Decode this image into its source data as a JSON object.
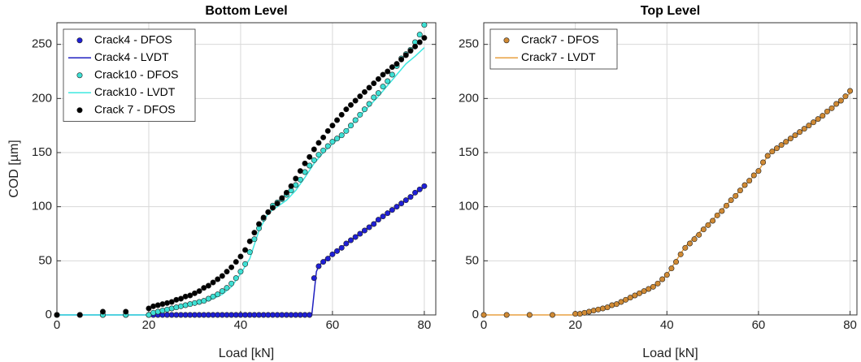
{
  "chart_data": [
    {
      "type": "line",
      "title": "Bottom Level",
      "x_label": "Load [kN]",
      "y_label": "COD [µm]",
      "xlim": [
        0,
        82.5
      ],
      "ylim": [
        0,
        270
      ],
      "xticks": [
        0,
        20,
        40,
        60,
        80
      ],
      "yticks": [
        0,
        50,
        100,
        150,
        200,
        250
      ],
      "grid": true,
      "legend": "upper left",
      "series": [
        {
          "name": "Crack4 - DFOS",
          "color": "#1f1fd6",
          "marker": true,
          "x": [
            0,
            5,
            10,
            15,
            20,
            21,
            22,
            23,
            24,
            25,
            26,
            27,
            28,
            29,
            30,
            31,
            32,
            33,
            34,
            35,
            36,
            37,
            38,
            39,
            40,
            41,
            42,
            43,
            44,
            45,
            46,
            47,
            48,
            49,
            50,
            51,
            52,
            53,
            54,
            55,
            56,
            57,
            58,
            59,
            60,
            61,
            62,
            63,
            64,
            65,
            66,
            67,
            68,
            69,
            70,
            71,
            72,
            73,
            74,
            75,
            76,
            77,
            78,
            79,
            80
          ],
          "values": [
            0,
            0,
            0,
            0,
            0,
            0,
            0,
            0,
            0,
            0,
            0,
            0,
            0,
            0,
            0,
            0,
            0,
            0,
            0,
            0,
            0,
            0,
            0,
            0,
            0,
            0,
            0,
            0,
            0,
            0,
            0,
            0,
            0,
            0,
            0,
            0,
            0,
            0,
            0,
            0,
            34,
            45,
            49,
            52,
            56,
            59,
            62,
            66,
            69,
            72,
            75,
            78,
            81,
            84,
            88,
            91,
            94,
            97,
            100,
            103,
            106,
            109,
            113,
            116,
            119
          ]
        },
        {
          "name": "Crack4 - LVDT",
          "color": "#1f1fc0",
          "marker": false,
          "x": [
            0,
            55.5,
            56.5,
            57,
            58,
            60,
            65,
            70,
            75,
            80
          ],
          "values": [
            0,
            0,
            40,
            45,
            50,
            56,
            72,
            88,
            103,
            118
          ]
        },
        {
          "name": "Crack10 - DFOS",
          "color": "#3ee0d4",
          "marker": true,
          "x": [
            0,
            5,
            10,
            15,
            20,
            21,
            22,
            23,
            24,
            25,
            26,
            27,
            28,
            29,
            30,
            31,
            32,
            33,
            34,
            35,
            36,
            37,
            38,
            39,
            40,
            41,
            42,
            43,
            44,
            45,
            46,
            47,
            48,
            49,
            50,
            51,
            52,
            53,
            54,
            55,
            56,
            57,
            58,
            59,
            60,
            61,
            62,
            63,
            64,
            65,
            66,
            67,
            68,
            69,
            70,
            71,
            72,
            73,
            74,
            75,
            76,
            77,
            78,
            79,
            80
          ],
          "values": [
            0,
            0,
            0,
            0,
            0,
            2,
            3,
            4,
            5,
            6,
            7,
            8,
            9,
            10,
            11,
            12,
            13,
            15,
            17,
            19,
            22,
            25,
            29,
            34,
            40,
            47,
            58,
            70,
            80,
            89,
            95,
            101,
            104,
            107,
            111,
            115,
            120,
            125,
            132,
            138,
            143,
            148,
            152,
            156,
            160,
            163,
            166,
            170,
            175,
            180,
            185,
            190,
            195,
            201,
            205,
            211,
            216,
            222,
            230,
            237,
            241,
            245,
            252,
            259,
            268
          ]
        },
        {
          "name": "Crack10 - LVDT",
          "color": "#3ee8e0",
          "marker": false,
          "x": [
            0,
            20,
            22,
            24,
            26,
            28,
            30,
            32,
            34,
            36,
            38,
            40,
            42,
            43,
            44,
            46,
            48,
            50,
            52,
            54,
            56,
            58,
            60,
            62,
            64,
            66,
            68,
            70,
            72,
            74,
            76,
            78,
            80
          ],
          "values": [
            0,
            0,
            2,
            4,
            6,
            8,
            10,
            12,
            15,
            19,
            26,
            38,
            52,
            65,
            78,
            94,
            100,
            106,
            115,
            127,
            140,
            150,
            158,
            165,
            175,
            184,
            193,
            202,
            212,
            222,
            232,
            239,
            247
          ]
        },
        {
          "name": "Crack 7 - DFOS",
          "color": "#000000",
          "marker": true,
          "x": [
            0,
            5,
            10,
            15,
            20,
            21,
            22,
            23,
            24,
            25,
            26,
            27,
            28,
            29,
            30,
            31,
            32,
            33,
            34,
            35,
            36,
            37,
            38,
            39,
            40,
            41,
            42,
            43,
            44,
            45,
            46,
            47,
            48,
            49,
            50,
            51,
            52,
            53,
            54,
            55,
            56,
            57,
            58,
            59,
            60,
            61,
            62,
            63,
            64,
            65,
            66,
            67,
            68,
            69,
            70,
            71,
            72,
            73,
            74,
            75,
            76,
            77,
            78,
            79,
            80
          ],
          "values": [
            0,
            0,
            3,
            3,
            6,
            8,
            9,
            10,
            11,
            12,
            14,
            15,
            17,
            18,
            20,
            22,
            25,
            27,
            30,
            33,
            36,
            40,
            44,
            49,
            54,
            60,
            68,
            76,
            84,
            90,
            95,
            99,
            103,
            108,
            113,
            119,
            126,
            133,
            140,
            146,
            153,
            159,
            164,
            170,
            175,
            180,
            185,
            190,
            194,
            198,
            202,
            206,
            210,
            214,
            218,
            222,
            225,
            229,
            232,
            236,
            240,
            244,
            248,
            252,
            256
          ]
        }
      ]
    },
    {
      "type": "line",
      "title": "Top Level",
      "x_label": "Load [kN]",
      "xlim": [
        0,
        81.5
      ],
      "ylim": [
        0,
        270
      ],
      "xticks": [
        0,
        20,
        40,
        60,
        80
      ],
      "yticks": [
        0,
        50,
        100,
        150,
        200,
        250
      ],
      "grid": true,
      "legend": "upper left",
      "series": [
        {
          "name": "Crack7 - DFOS",
          "color": "#d08a34",
          "marker": true,
          "x": [
            0,
            5,
            10,
            15,
            20,
            21,
            22,
            23,
            24,
            25,
            26,
            27,
            28,
            29,
            30,
            31,
            32,
            33,
            34,
            35,
            36,
            37,
            38,
            39,
            40,
            41,
            42,
            43,
            44,
            45,
            46,
            47,
            48,
            49,
            50,
            51,
            52,
            53,
            54,
            55,
            56,
            57,
            58,
            59,
            60,
            61,
            62,
            63,
            64,
            65,
            66,
            67,
            68,
            69,
            70,
            71,
            72,
            73,
            74,
            75,
            76,
            77,
            78,
            79,
            80
          ],
          "values": [
            0,
            0,
            0,
            0,
            1,
            1,
            2,
            3,
            4,
            5,
            6,
            7,
            9,
            10,
            12,
            14,
            16,
            18,
            20,
            22,
            24,
            26,
            29,
            33,
            37,
            43,
            49,
            56,
            62,
            66,
            70,
            74,
            79,
            83,
            87,
            92,
            96,
            101,
            106,
            110,
            115,
            120,
            124,
            129,
            133,
            141,
            147,
            151,
            154,
            157,
            160,
            163,
            166,
            169,
            172,
            175,
            178,
            181,
            184,
            188,
            191,
            195,
            198,
            202,
            207
          ]
        },
        {
          "name": "Crack7 - LVDT",
          "color": "#e8a040",
          "marker": false,
          "x": [
            0,
            20,
            22,
            24,
            26,
            28,
            30,
            32,
            34,
            36,
            38,
            40,
            42,
            44,
            46,
            48,
            50,
            52,
            54,
            56,
            58,
            60,
            62,
            64,
            66,
            68,
            70,
            72,
            74,
            76,
            78,
            80
          ],
          "values": [
            0,
            0,
            2,
            4,
            6,
            8,
            11,
            15,
            19,
            24,
            29,
            37,
            50,
            63,
            72,
            80,
            88,
            97,
            106,
            115,
            124,
            133,
            147,
            154,
            160,
            166,
            172,
            178,
            184,
            191,
            197,
            205
          ]
        }
      ]
    }
  ]
}
